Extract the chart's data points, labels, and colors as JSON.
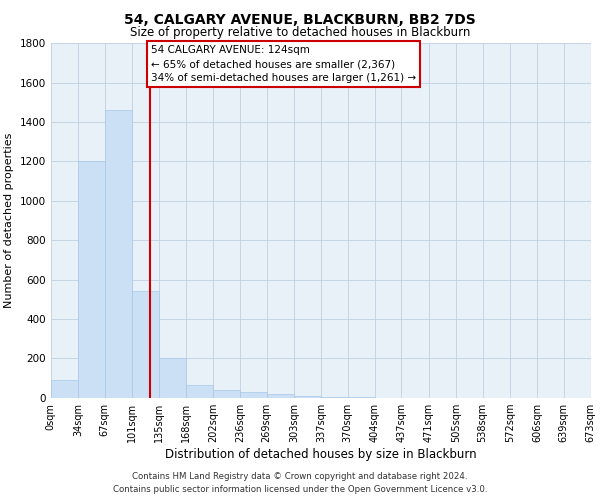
{
  "title": "54, CALGARY AVENUE, BLACKBURN, BB2 7DS",
  "subtitle": "Size of property relative to detached houses in Blackburn",
  "xlabel": "Distribution of detached houses by size in Blackburn",
  "ylabel": "Number of detached properties",
  "property_size": 124,
  "annotation_line1": "54 CALGARY AVENUE: 124sqm",
  "annotation_line2": "← 65% of detached houses are smaller (2,367)",
  "annotation_line3": "34% of semi-detached houses are larger (1,261) →",
  "footer_line1": "Contains HM Land Registry data © Crown copyright and database right 2024.",
  "footer_line2": "Contains public sector information licensed under the Open Government Licence v3.0.",
  "bar_color": "#cce0f5",
  "bar_edge_color": "#a8c8e8",
  "vline_color": "#cc0000",
  "annotation_box_facecolor": "#ffffff",
  "annotation_box_edgecolor": "#cc0000",
  "background_color": "#ffffff",
  "plot_bg_color": "#e8f0f8",
  "grid_color": "#c0d0e0",
  "bin_edges": [
    0,
    34,
    67,
    101,
    135,
    168,
    202,
    236,
    269,
    303,
    337,
    370,
    404,
    437,
    471,
    505,
    538,
    572,
    606,
    639,
    673
  ],
  "bin_labels": [
    "0sqm",
    "34sqm",
    "67sqm",
    "101sqm",
    "135sqm",
    "168sqm",
    "202sqm",
    "236sqm",
    "269sqm",
    "303sqm",
    "337sqm",
    "370sqm",
    "404sqm",
    "437sqm",
    "471sqm",
    "505sqm",
    "538sqm",
    "572sqm",
    "606sqm",
    "639sqm",
    "673sqm"
  ],
  "counts": [
    90,
    1200,
    1460,
    540,
    200,
    65,
    40,
    30,
    20,
    10,
    5,
    3,
    2,
    1,
    1,
    1,
    0,
    0,
    0,
    0
  ],
  "ylim": [
    0,
    1800
  ],
  "yticks": [
    0,
    200,
    400,
    600,
    800,
    1000,
    1200,
    1400,
    1600,
    1800
  ]
}
